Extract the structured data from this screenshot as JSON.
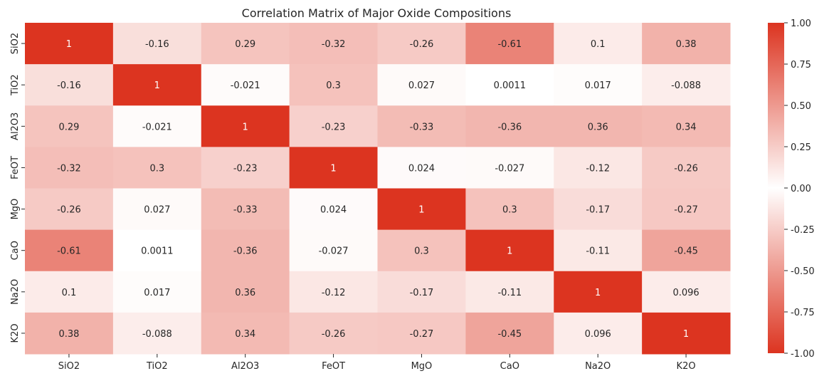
{
  "chart_data": {
    "type": "heatmap",
    "title": "Correlation Matrix of Major Oxide Compositions",
    "xlabel": "",
    "ylabel": "",
    "x_categories": [
      "SiO2",
      "TiO2",
      "Al2O3",
      "FeOT",
      "MgO",
      "CaO",
      "Na2O",
      "K2O"
    ],
    "y_categories": [
      "SiO2",
      "TiO2",
      "Al2O3",
      "FeOT",
      "MgO",
      "CaO",
      "Na2O",
      "K2O"
    ],
    "values": [
      [
        1,
        -0.16,
        0.29,
        -0.32,
        -0.26,
        -0.61,
        0.1,
        0.38
      ],
      [
        -0.16,
        1,
        -0.021,
        0.3,
        0.027,
        0.0011,
        0.017,
        -0.088
      ],
      [
        0.29,
        -0.021,
        1,
        -0.23,
        -0.33,
        -0.36,
        0.36,
        0.34
      ],
      [
        -0.32,
        0.3,
        -0.23,
        1,
        0.024,
        -0.027,
        -0.12,
        -0.26
      ],
      [
        -0.26,
        0.027,
        -0.33,
        0.024,
        1,
        0.3,
        -0.17,
        -0.27
      ],
      [
        -0.61,
        0.0011,
        -0.36,
        -0.027,
        0.3,
        1,
        -0.11,
        -0.45
      ],
      [
        0.1,
        0.017,
        0.36,
        -0.12,
        -0.17,
        -0.11,
        1,
        0.096
      ],
      [
        0.38,
        -0.088,
        0.34,
        -0.26,
        -0.27,
        -0.45,
        0.096,
        1
      ]
    ],
    "annotations_shown": true,
    "colorbar": {
      "range": [
        -1,
        1
      ],
      "ticks": [
        "1.00",
        "0.75",
        "0.50",
        "0.25",
        "0.00",
        "-0.25",
        "-0.50",
        "-0.75",
        "-1.00"
      ],
      "tick_values": [
        1,
        0.75,
        0.5,
        0.25,
        0,
        -0.25,
        -0.5,
        -0.75,
        -1
      ],
      "color_extreme": "#dc3420",
      "color_center": "#ffffff",
      "placement": "right"
    }
  }
}
